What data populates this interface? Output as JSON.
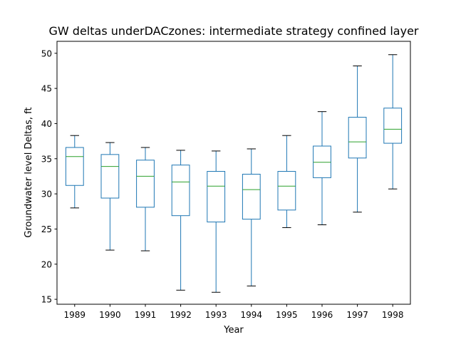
{
  "chart_data": {
    "type": "box",
    "title": "GW deltas underDACzones: intermediate strategy confined layer",
    "xlabel": "Year",
    "ylabel": "Groundwater level Deltas, ft",
    "ylim": [
      14.3,
      51.7
    ],
    "yticks": [
      15,
      20,
      25,
      30,
      35,
      40,
      45,
      50
    ],
    "grid": false,
    "box_color": "#1f77b4",
    "median_color": "#2ca02c",
    "categories": [
      "1989",
      "1990",
      "1991",
      "1992",
      "1993",
      "1994",
      "1995",
      "1996",
      "1997",
      "1998"
    ],
    "boxes": [
      {
        "min": 28.0,
        "q1": 31.2,
        "median": 35.3,
        "q3": 36.6,
        "max": 38.3
      },
      {
        "min": 22.0,
        "q1": 29.4,
        "median": 33.9,
        "q3": 35.6,
        "max": 37.3
      },
      {
        "min": 21.9,
        "q1": 28.1,
        "median": 32.5,
        "q3": 34.8,
        "max": 36.6
      },
      {
        "min": 16.3,
        "q1": 26.9,
        "median": 31.7,
        "q3": 34.1,
        "max": 36.2
      },
      {
        "min": 16.0,
        "q1": 26.0,
        "median": 31.1,
        "q3": 33.2,
        "max": 36.1
      },
      {
        "min": 16.9,
        "q1": 26.4,
        "median": 30.6,
        "q3": 32.8,
        "max": 36.4
      },
      {
        "min": 25.2,
        "q1": 27.7,
        "median": 31.1,
        "q3": 33.2,
        "max": 38.3
      },
      {
        "min": 25.6,
        "q1": 32.3,
        "median": 34.5,
        "q3": 36.8,
        "max": 41.7
      },
      {
        "min": 27.4,
        "q1": 35.1,
        "median": 37.4,
        "q3": 40.9,
        "max": 48.2
      },
      {
        "min": 30.7,
        "q1": 37.2,
        "median": 39.2,
        "q3": 42.2,
        "max": 49.8
      }
    ]
  }
}
